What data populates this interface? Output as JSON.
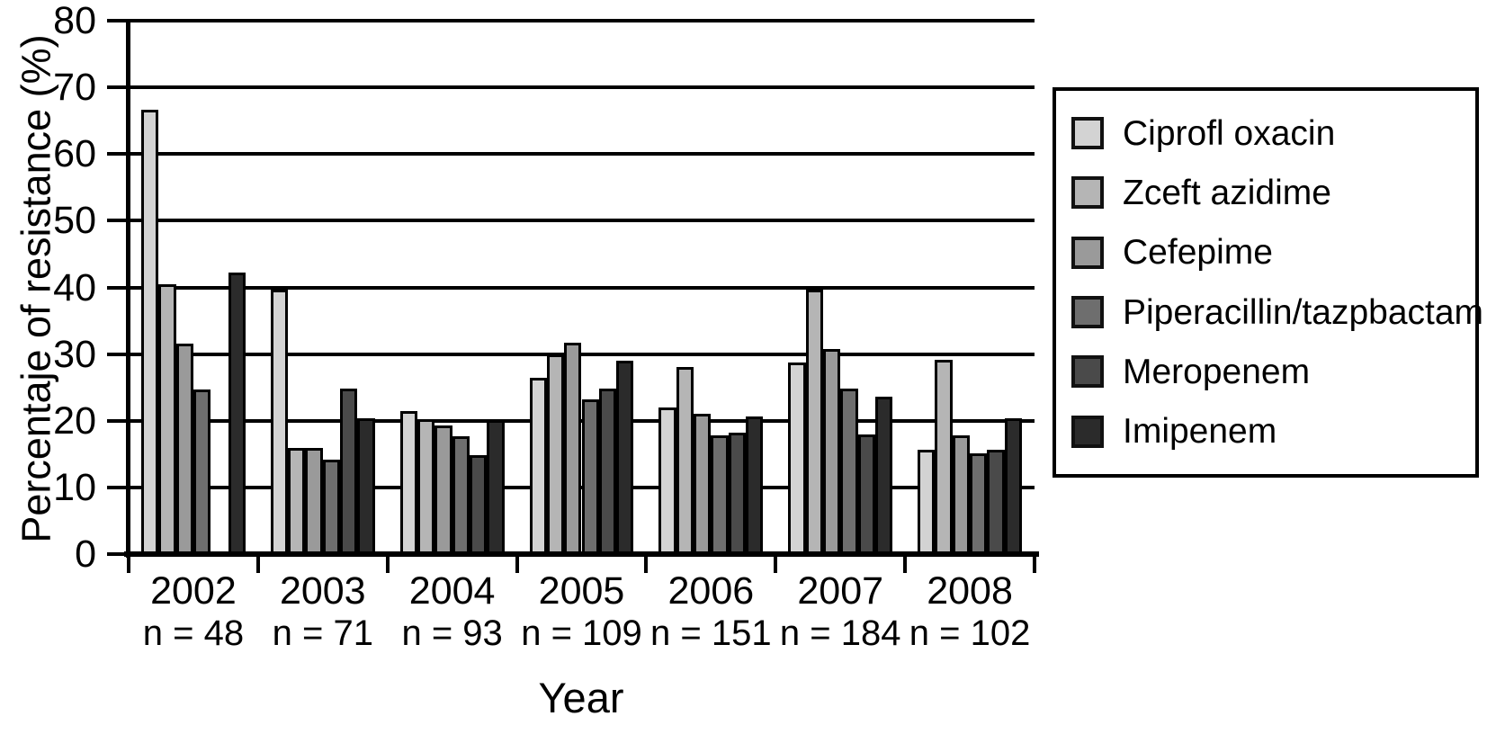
{
  "chart_data": {
    "type": "bar",
    "title": "",
    "xlabel": "Year",
    "ylabel": "Percentaje of resistance (%)",
    "ylim": [
      0,
      80
    ],
    "ytick_step": 10,
    "grid": true,
    "legend_position": "right",
    "groups": [
      {
        "year": "2002",
        "n_label": "n = 48"
      },
      {
        "year": "2003",
        "n_label": "n = 71"
      },
      {
        "year": "2004",
        "n_label": "n = 93"
      },
      {
        "year": "2005",
        "n_label": "n = 109"
      },
      {
        "year": "2006",
        "n_label": "n = 151"
      },
      {
        "year": "2007",
        "n_label": "n = 184"
      },
      {
        "year": "2008",
        "n_label": "n = 102"
      }
    ],
    "series": [
      {
        "name": "Ciprofl oxacin",
        "color": "#d3d3d3",
        "values": [
          66.6,
          39.7,
          21.5,
          26.5,
          22.0,
          28.7,
          15.6
        ]
      },
      {
        "name": "Zceft azidime",
        "color": "#b5b5b5",
        "values": [
          40.5,
          15.9,
          20.3,
          30.0,
          28.1,
          39.7,
          29.1
        ]
      },
      {
        "name": "Cefepime",
        "color": "#9a9a9a",
        "values": [
          31.6,
          15.9,
          19.3,
          31.7,
          21.0,
          30.8,
          17.8
        ]
      },
      {
        "name": "Piperacillin/tazpbactam",
        "color": "#6e6e6e",
        "values": [
          24.7,
          14.2,
          17.7,
          23.2,
          17.8,
          24.8,
          15.1
        ]
      },
      {
        "name": "Meropenem",
        "color": "#4a4a4a",
        "values": [
          0,
          24.8,
          14.9,
          24.8,
          18.2,
          18.0,
          15.6
        ]
      },
      {
        "name": "Imipenem",
        "color": "#2b2b2b",
        "values": [
          42.2,
          20.4,
          20.1,
          29.0,
          20.7,
          23.6,
          20.4
        ]
      }
    ],
    "axis_color": "#000000"
  }
}
